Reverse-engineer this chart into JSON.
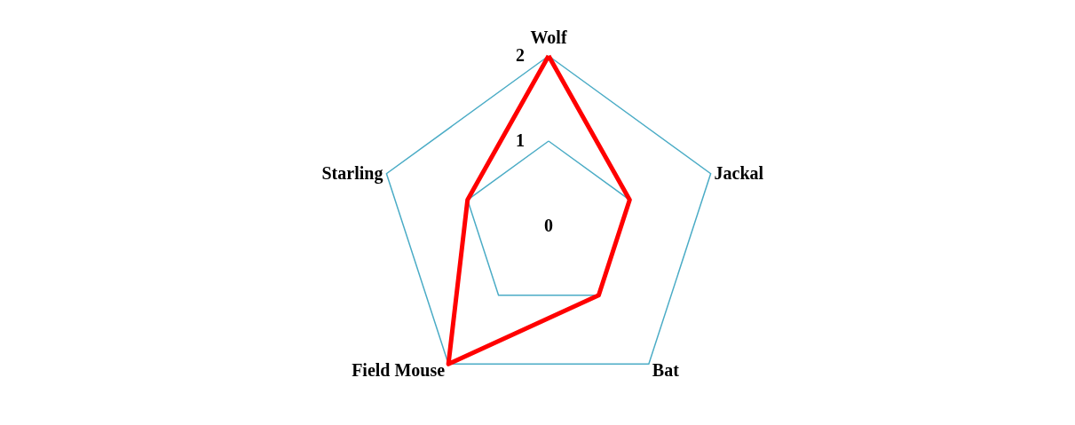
{
  "chart_data": {
    "type": "radar",
    "categories": [
      "Wolf",
      "Jackal",
      "Bat",
      "Field Mouse",
      "Starling"
    ],
    "series": [
      {
        "color": "#ff0000",
        "values": [
          2,
          1,
          1,
          2,
          1
        ]
      }
    ],
    "ylim": [
      0,
      2
    ],
    "yticks": [
      0,
      1,
      2
    ],
    "grid": true,
    "marker": "none",
    "line_style": "solid"
  }
}
